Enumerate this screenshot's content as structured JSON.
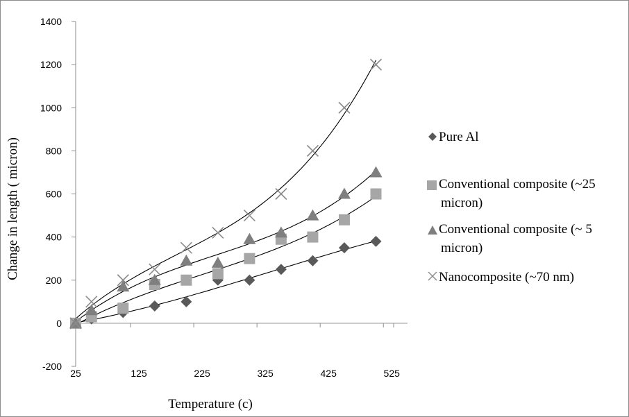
{
  "chart_data": {
    "type": "scatter",
    "title": "",
    "xlabel": "Temperature (c)",
    "ylabel": "Change in length ( micron)",
    "xlim": [
      25,
      550
    ],
    "ylim": [
      -200,
      1400
    ],
    "x_ticks": [
      "25",
      "125",
      "225",
      "325",
      "425",
      "525"
    ],
    "y_ticks": [
      "-200",
      "0",
      "200",
      "400",
      "600",
      "800",
      "1000",
      "1200",
      "1400"
    ],
    "grid": false,
    "legend_position": "right",
    "trendlines": true,
    "series": [
      {
        "name": "Pure Al",
        "legend_lines": [
          "Pure Al"
        ],
        "marker": "diamond",
        "color": "#595959",
        "x": [
          25,
          50,
          100,
          150,
          200,
          250,
          300,
          350,
          400,
          450,
          500
        ],
        "y": [
          0,
          20,
          50,
          80,
          100,
          200,
          200,
          250,
          290,
          350,
          380
        ]
      },
      {
        "name": "Conventional composite (~25 micron)",
        "legend_lines": [
          "Conventional composite (~25",
          "micron)"
        ],
        "marker": "square",
        "color": "#a6a6a6",
        "x": [
          25,
          50,
          100,
          150,
          200,
          250,
          300,
          350,
          400,
          450,
          500
        ],
        "y": [
          0,
          30,
          70,
          180,
          200,
          230,
          300,
          390,
          400,
          480,
          600
        ]
      },
      {
        "name": "Conventional composite (~ 5 micron)",
        "legend_lines": [
          "Conventional composite (~ 5",
          "micron)"
        ],
        "marker": "triangle",
        "color": "#7f7f7f",
        "x": [
          25,
          50,
          100,
          150,
          200,
          250,
          300,
          350,
          400,
          450,
          500
        ],
        "y": [
          0,
          60,
          170,
          200,
          290,
          280,
          390,
          420,
          500,
          600,
          700
        ]
      },
      {
        "name": "Nanocomposite (~70 nm)",
        "legend_lines": [
          "Nanocomposite (~70 nm)"
        ],
        "marker": "x",
        "color": "#8c8c8c",
        "x": [
          25,
          50,
          100,
          150,
          200,
          250,
          300,
          350,
          400,
          450,
          500
        ],
        "y": [
          0,
          100,
          200,
          250,
          350,
          420,
          500,
          600,
          800,
          1000,
          1200
        ]
      }
    ]
  }
}
